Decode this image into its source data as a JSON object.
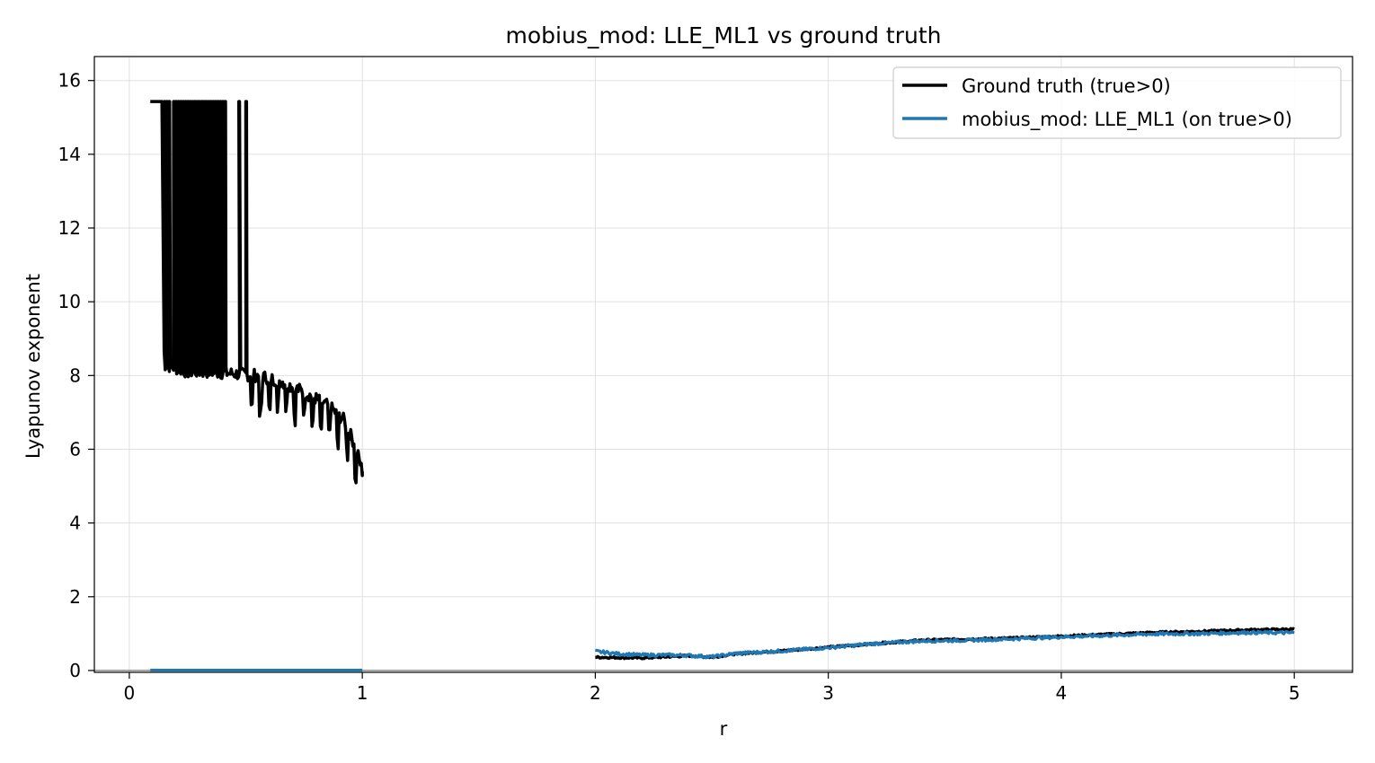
{
  "chart_data": {
    "type": "line",
    "title": "mobius_mod: LLE_ML1 vs ground truth",
    "xlabel": "r",
    "ylabel": "Lyapunov exponent",
    "xlim": [
      -0.15,
      5.25
    ],
    "ylim": [
      -0.05,
      16.65
    ],
    "xticks": [
      0,
      1,
      2,
      3,
      4,
      5
    ],
    "yticks": [
      0,
      2,
      4,
      6,
      8,
      10,
      12,
      14,
      16
    ],
    "grid": true,
    "legend_position": "top-right",
    "series": [
      {
        "name": "Ground truth (true>0)",
        "color": "#000000",
        "segments": [
          {
            "kind": "chaotic-drop",
            "x_start": 0.09,
            "x_end": 1.0,
            "y_high": 15.43,
            "baseline_points": [
              [
                0.09,
                15.43
              ],
              [
                0.14,
                15.43
              ],
              [
                0.15,
                8.3
              ],
              [
                0.25,
                8.1
              ],
              [
                0.35,
                8.1
              ],
              [
                0.45,
                8.05
              ],
              [
                0.55,
                8.0
              ],
              [
                0.65,
                7.85
              ],
              [
                0.75,
                7.55
              ],
              [
                0.85,
                7.2
              ],
              [
                0.92,
                6.8
              ],
              [
                0.97,
                6.1
              ],
              [
                1.0,
                5.4
              ]
            ],
            "spikes": [
              0.15,
              0.16,
              0.17,
              0.19,
              0.2,
              0.21,
              0.22,
              0.23,
              0.24,
              0.25,
              0.26,
              0.27,
              0.28,
              0.29,
              0.3,
              0.31,
              0.32,
              0.33,
              0.34,
              0.35,
              0.36,
              0.37,
              0.38,
              0.39,
              0.4,
              0.41,
              0.47,
              0.5
            ]
          },
          {
            "kind": "smooth",
            "points": [
              [
                2.0,
                0.36
              ],
              [
                2.2,
                0.34
              ],
              [
                2.4,
                0.4
              ],
              [
                2.5,
                0.36
              ],
              [
                2.6,
                0.45
              ],
              [
                2.8,
                0.53
              ],
              [
                3.0,
                0.63
              ],
              [
                3.2,
                0.73
              ],
              [
                3.4,
                0.82
              ],
              [
                3.6,
                0.85
              ],
              [
                3.8,
                0.88
              ],
              [
                4.0,
                0.93
              ],
              [
                4.2,
                0.98
              ],
              [
                4.4,
                1.03
              ],
              [
                4.6,
                1.06
              ],
              [
                4.8,
                1.1
              ],
              [
                5.0,
                1.12
              ]
            ]
          }
        ]
      },
      {
        "name": "mobius_mod: LLE_ML1 (on true>0)",
        "color": "#1f77b4",
        "segments": [
          {
            "kind": "flat",
            "points": [
              [
                0.09,
                0.01
              ],
              [
                1.0,
                0.01
              ]
            ]
          },
          {
            "kind": "smooth",
            "points": [
              [
                2.0,
                0.52
              ],
              [
                2.1,
                0.45
              ],
              [
                2.2,
                0.42
              ],
              [
                2.3,
                0.42
              ],
              [
                2.4,
                0.41
              ],
              [
                2.5,
                0.37
              ],
              [
                2.6,
                0.46
              ],
              [
                2.8,
                0.53
              ],
              [
                3.0,
                0.62
              ],
              [
                3.2,
                0.73
              ],
              [
                3.4,
                0.8
              ],
              [
                3.6,
                0.82
              ],
              [
                3.8,
                0.86
              ],
              [
                4.0,
                0.91
              ],
              [
                4.2,
                0.95
              ],
              [
                4.4,
                0.99
              ],
              [
                4.6,
                1.0
              ],
              [
                4.8,
                1.03
              ],
              [
                5.0,
                1.02
              ]
            ]
          }
        ]
      }
    ]
  }
}
